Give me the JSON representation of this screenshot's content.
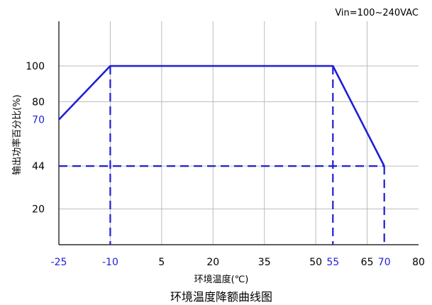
{
  "chart_data": {
    "type": "line",
    "title": "环境温度降额曲线图",
    "annotation": "Vin=100~240VAC",
    "xlabel": "环境温度(℃)",
    "ylabel": "输出功率百分比(%)",
    "xlim": [
      -25,
      80
    ],
    "ylim": [
      0,
      125
    ],
    "x_ticks": [
      {
        "value": -25,
        "label": "-25",
        "highlight": true
      },
      {
        "value": -10,
        "label": "-10",
        "highlight": true
      },
      {
        "value": 5,
        "label": "5",
        "highlight": false
      },
      {
        "value": 20,
        "label": "20",
        "highlight": false
      },
      {
        "value": 35,
        "label": "35",
        "highlight": false
      },
      {
        "value": 50,
        "label": "50",
        "highlight": false
      },
      {
        "value": 55,
        "label": "55",
        "highlight": true
      },
      {
        "value": 65,
        "label": "65",
        "highlight": false
      },
      {
        "value": 70,
        "label": "70",
        "highlight": true
      },
      {
        "value": 80,
        "label": "80",
        "highlight": false
      }
    ],
    "y_ticks": [
      {
        "value": 20,
        "label": "20",
        "highlight": false
      },
      {
        "value": 44,
        "label": "44",
        "highlight": false
      },
      {
        "value": 70,
        "label": "70",
        "highlight": true
      },
      {
        "value": 80,
        "label": "80",
        "highlight": false
      },
      {
        "value": 100,
        "label": "100",
        "highlight": false
      }
    ],
    "x_gridlines": [
      -10,
      5,
      20,
      35,
      50,
      65
    ],
    "y_gridlines": [
      20,
      44,
      80,
      100
    ],
    "series": [
      {
        "points": [
          [
            -25,
            70
          ],
          [
            -10,
            100
          ],
          [
            55,
            100
          ],
          [
            70,
            44
          ]
        ]
      }
    ],
    "dashed_guides": [
      {
        "from": [
          -10,
          100
        ],
        "to": [
          -10,
          0
        ]
      },
      {
        "from": [
          55,
          100
        ],
        "to": [
          55,
          0
        ]
      },
      {
        "from": [
          70,
          44
        ],
        "to": [
          70,
          0
        ]
      },
      {
        "from": [
          -25,
          44
        ],
        "to": [
          70,
          44
        ]
      }
    ],
    "colors": {
      "series": "#1f1fd6",
      "highlight_text": "#1f1fd6",
      "grid": "#bbbbbb",
      "axis": "#000000"
    }
  }
}
